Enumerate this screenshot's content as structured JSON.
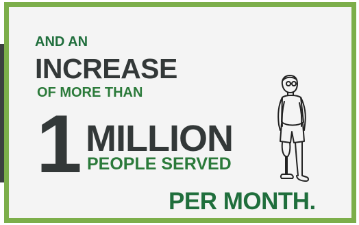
{
  "headline": {
    "line1": "AND AN",
    "line2": "INCREASE",
    "line3": "OF MORE THAN",
    "number": "1",
    "unit": "MILLION",
    "line5": "PEOPLE SERVED",
    "line6": "PER MONTH."
  },
  "illustration": {
    "icon": "person-with-prosthetic-leg-icon"
  },
  "colors": {
    "border": "#7cae4a",
    "dark_text": "#333838",
    "green_text": "#2b7a3a",
    "card_bg": "#f4f4f4"
  }
}
